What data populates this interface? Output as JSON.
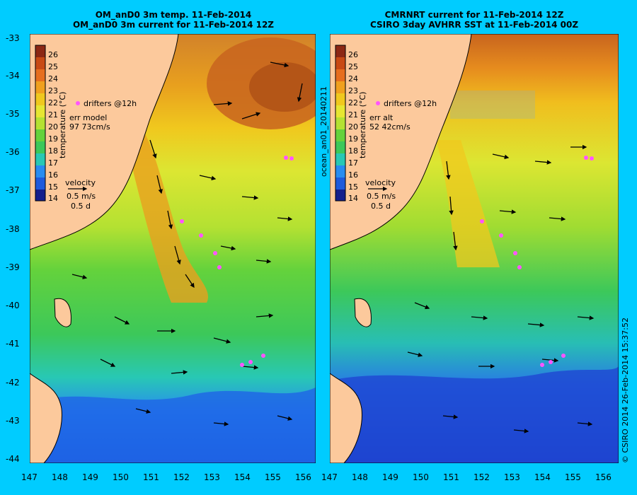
{
  "left_panel": {
    "title_line1": "OM_anD0 3m temp. 11-Feb-2014",
    "title_line2": "OM_anD0 3m current for 11-Feb-2014 12Z",
    "drifters_label": "drifters @12h",
    "err_label": "err model",
    "err_value": "97 73cm/s",
    "colorbar_title": "temperature (°C)",
    "velocity_label": "velocity",
    "velocity_scale": "0.5 m/s",
    "velocity_time": "0.5 d"
  },
  "right_panel": {
    "title_line1": "CMRNRT current for 11-Feb-2014 12Z",
    "title_line2": "CSIRO 3day AVHRR SST at 11-Feb-2014 00Z",
    "drifters_label": "drifters @12h",
    "err_label": "err alt",
    "err_value": "52 42cm/s",
    "colorbar_title": "temperature (°C)",
    "velocity_label": "velocity",
    "velocity_scale": "0.5 m/s",
    "velocity_time": "0.5 d"
  },
  "side_label": "ocean_an01_20140211",
  "footer_label": "© CSIRO 2014  26-Feb-2014 15:37:52",
  "colorbar_ticks": [
    "26",
    "25",
    "24",
    "23",
    "22",
    "21",
    "20",
    "19",
    "18",
    "17",
    "16",
    "15",
    "14"
  ],
  "lat_ticks": [
    "-33",
    "-34",
    "-35",
    "-36",
    "-37",
    "-38",
    "-39",
    "-40",
    "-41",
    "-42",
    "-43",
    "-44"
  ],
  "lon_ticks_left": [
    "147",
    "148",
    "149",
    "150",
    "151",
    "152",
    "153",
    "154",
    "155",
    "156"
  ],
  "lon_ticks_right": [
    "147",
    "148",
    "149",
    "150",
    "151",
    "152",
    "153",
    "154",
    "155",
    "156"
  ],
  "colors": {
    "background": "#00ccff",
    "land": "#fcc99c",
    "drifter": "#ff55ff",
    "warm": "#c8641e",
    "cool": "#1e5adc"
  }
}
